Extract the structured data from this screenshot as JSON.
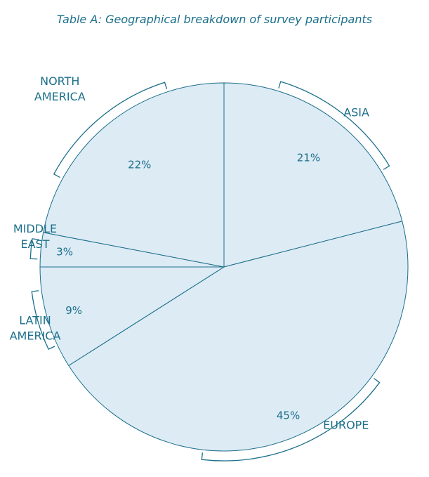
{
  "chart_data": {
    "type": "pie",
    "title": "Table A: Geographical breakdown of survey participants",
    "slices": [
      {
        "label": "ASIA",
        "value": 21,
        "value_label": "21%"
      },
      {
        "label": "EUROPE",
        "value": 45,
        "value_label": "45%"
      },
      {
        "label": "LATIN AMERICA",
        "label_lines": [
          "LATIN",
          "AMERICA"
        ],
        "value": 9,
        "value_label": "9%"
      },
      {
        "label": "MIDDLE EAST",
        "label_lines": [
          "MIDDLE",
          "EAST"
        ],
        "value": 3,
        "value_label": "3%"
      },
      {
        "label": "NORTH AMERICA",
        "label_lines": [
          "NORTH",
          "AMERICA"
        ],
        "value": 22,
        "value_label": "22%"
      }
    ],
    "colors": {
      "fill": "#ddebf5",
      "stroke": "#1b6f8a",
      "text": "#1b6f8a"
    }
  }
}
